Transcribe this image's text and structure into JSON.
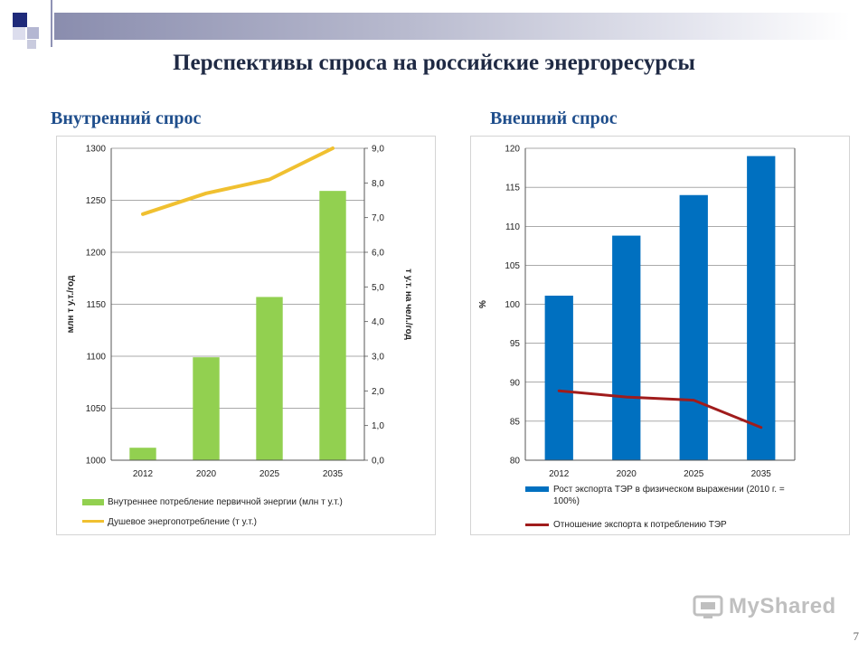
{
  "title": "Перспективы спроса на российские энергоресурсы",
  "page_number": "7",
  "logo_text": "MyShared",
  "colors": {
    "green": "#92d050",
    "yellow": "#f0c030",
    "blue": "#0070c0",
    "darkred": "#a01c1c"
  },
  "chart_data": [
    {
      "type": "bar",
      "subtitle": "Внутренний спрос",
      "categories": [
        "2012",
        "2020",
        "2025",
        "2035"
      ],
      "ylabel": "млн т у.т./год",
      "y2label": "т у.т. на чел./год",
      "ylim": [
        1000,
        1300
      ],
      "y2lim": [
        0,
        9
      ],
      "yticks": [
        "1000",
        "1050",
        "1100",
        "1150",
        "1200",
        "1250",
        "1300"
      ],
      "y2ticks": [
        "0,0",
        "1,0",
        "2,0",
        "3,0",
        "4,0",
        "5,0",
        "6,0",
        "7,0",
        "8,0",
        "9,0"
      ],
      "grid": true,
      "series": [
        {
          "name": "Внутреннее потребление первичной энергии (млн т у.т.)",
          "kind": "bar",
          "axis": "left",
          "values": [
            1012,
            1099,
            1157,
            1259
          ]
        },
        {
          "name": "Душевое энергопотребление (т у.т.)",
          "kind": "line",
          "axis": "right",
          "values": [
            7.1,
            7.7,
            8.1,
            9.0
          ]
        }
      ]
    },
    {
      "type": "bar",
      "subtitle": "Внешний спрос",
      "categories": [
        "2012",
        "2020",
        "2025",
        "2035"
      ],
      "ylabel": "%",
      "ylim": [
        80,
        120
      ],
      "yticks": [
        "80",
        "85",
        "90",
        "95",
        "100",
        "105",
        "110",
        "115",
        "120"
      ],
      "grid": true,
      "series": [
        {
          "name": "Рост экспорта ТЭР в физическом выражении (2010 г. = 100%)",
          "kind": "bar",
          "axis": "left",
          "values": [
            101.1,
            108.8,
            114.0,
            119.0
          ]
        },
        {
          "name": "Отношение экспорта к потреблению ТЭР",
          "kind": "line",
          "axis": "left",
          "values": [
            88.9,
            88.1,
            87.7,
            84.2
          ]
        }
      ]
    }
  ]
}
